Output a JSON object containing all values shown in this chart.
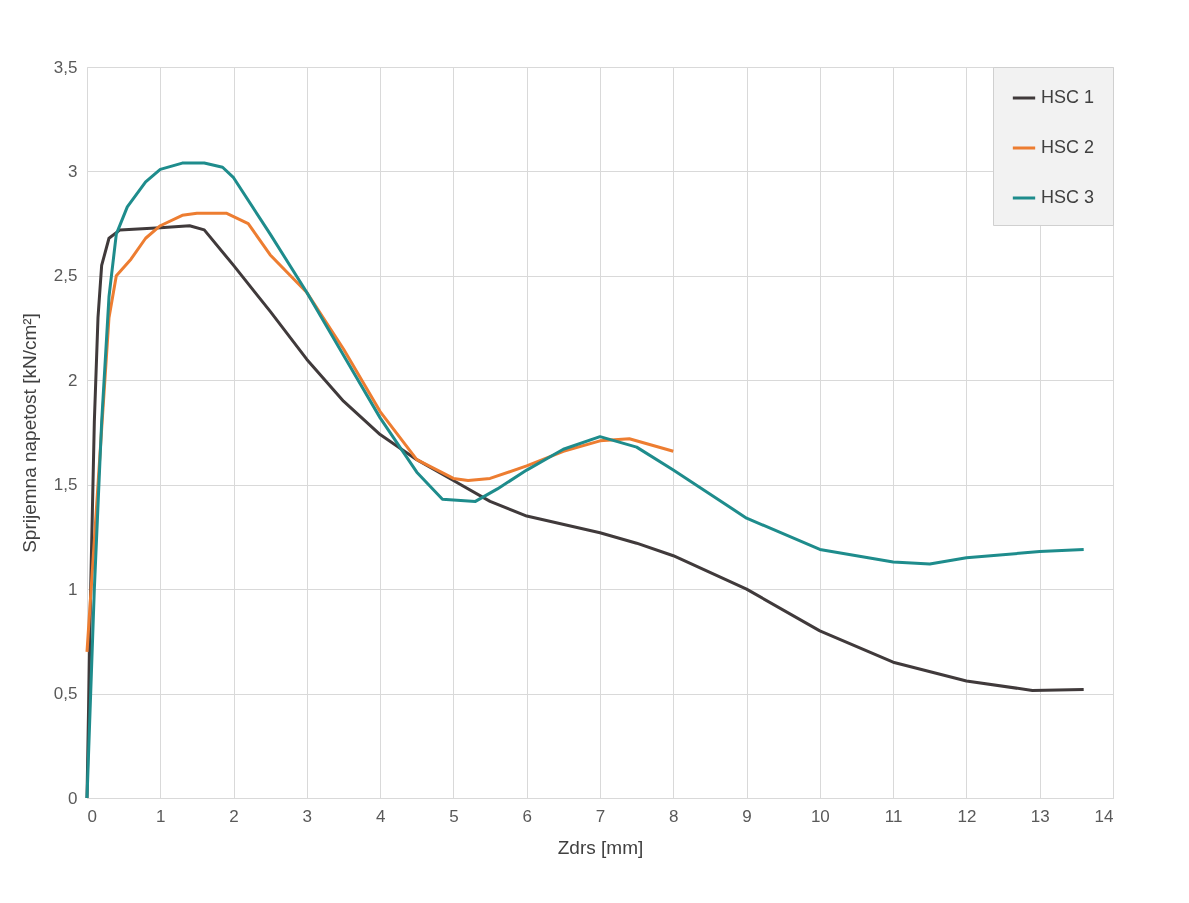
{
  "chart_data": {
    "type": "line",
    "xlabel": "Zdrs [mm]",
    "ylabel": "Sprijemna napetost [kN/cm²]",
    "xlim": [
      0,
      14
    ],
    "xticks": [
      0,
      1,
      2,
      3,
      4,
      5,
      6,
      7,
      8,
      9,
      10,
      11,
      12,
      13,
      14
    ],
    "ylim": [
      0,
      3.5
    ],
    "yticks": [
      0,
      {
        "value": 0.5,
        "label": "0,5"
      },
      1,
      {
        "value": 1.5,
        "label": "1,5"
      },
      2,
      {
        "value": 2.5,
        "label": "2,5"
      },
      3,
      {
        "value": 3.5,
        "label": "3,5"
      }
    ],
    "grid": true,
    "legend": "top right",
    "marker": "none",
    "line_style": "solid",
    "series": [
      {
        "name": "HSC 1",
        "color": "#403a3b",
        "x": [
          0,
          0.05,
          0.1,
          0.15,
          0.2,
          0.3,
          0.45,
          1.0,
          1.4,
          1.6,
          2.0,
          2.5,
          3.0,
          3.5,
          4.0,
          4.5,
          5.0,
          5.5,
          6.0,
          7.0,
          7.5,
          8.0,
          9.0,
          10.0,
          11.0,
          12.0,
          12.9,
          13.6
        ],
        "values": [
          0,
          1.0,
          1.8,
          2.3,
          2.55,
          2.68,
          2.72,
          2.73,
          2.74,
          2.72,
          2.55,
          2.33,
          2.1,
          1.9,
          1.74,
          1.62,
          1.52,
          1.42,
          1.35,
          1.27,
          1.22,
          1.16,
          1.0,
          0.8,
          0.65,
          0.56,
          0.515,
          0.52
        ]
      },
      {
        "name": "HSC 2",
        "color": "#ed7d31",
        "x": [
          0,
          0.15,
          0.3,
          0.4,
          0.6,
          0.8,
          1.0,
          1.3,
          1.5,
          1.9,
          2.2,
          2.5,
          3.0,
          3.5,
          4.0,
          4.5,
          5.0,
          5.2,
          5.5,
          6.0,
          6.5,
          7.0,
          7.4,
          8.0
        ],
        "values": [
          0.7,
          1.5,
          2.3,
          2.5,
          2.58,
          2.68,
          2.74,
          2.79,
          2.8,
          2.8,
          2.75,
          2.6,
          2.42,
          2.15,
          1.85,
          1.62,
          1.53,
          1.52,
          1.53,
          1.59,
          1.66,
          1.71,
          1.72,
          1.66
        ]
      },
      {
        "name": "HSC 3",
        "color": "#1e8c8c",
        "x": [
          0,
          0.1,
          0.2,
          0.3,
          0.4,
          0.55,
          0.8,
          1.0,
          1.3,
          1.6,
          1.85,
          2.0,
          2.5,
          3.0,
          3.5,
          4.0,
          4.5,
          4.85,
          5.3,
          5.6,
          6.0,
          6.5,
          7.0,
          7.5,
          8.0,
          9.0,
          10.0,
          11.0,
          11.5,
          12.0,
          13.0,
          13.6
        ],
        "values": [
          0,
          1.0,
          1.8,
          2.4,
          2.7,
          2.83,
          2.95,
          3.01,
          3.04,
          3.04,
          3.02,
          2.97,
          2.7,
          2.42,
          2.12,
          1.82,
          1.56,
          1.43,
          1.42,
          1.48,
          1.57,
          1.67,
          1.73,
          1.68,
          1.57,
          1.34,
          1.19,
          1.13,
          1.12,
          1.15,
          1.18,
          1.19
        ]
      }
    ]
  }
}
